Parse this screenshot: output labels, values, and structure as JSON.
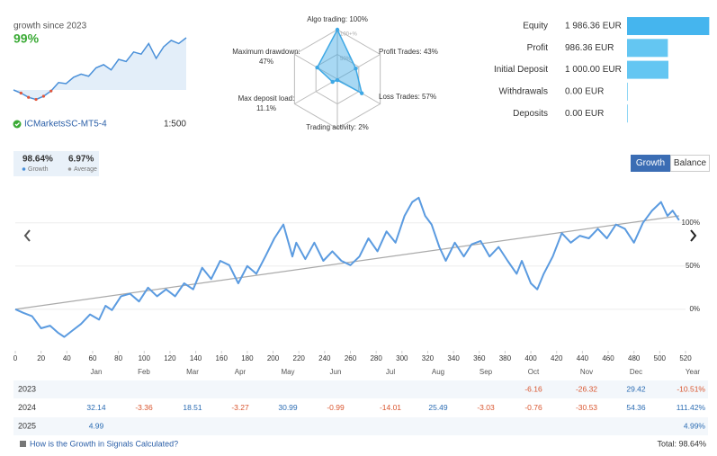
{
  "header": {
    "subtitle": "growth since 2023",
    "growth": "99%",
    "sparkline": [
      0,
      -6,
      -14,
      -18,
      -12,
      -2,
      14,
      12,
      24,
      30,
      26,
      42,
      48,
      38,
      58,
      54,
      72,
      68,
      88,
      60,
      82,
      94,
      88,
      99
    ],
    "account": "ICMarketsSC-MT5-4",
    "leverage": "1:500"
  },
  "radar": {
    "labels": [
      "Algo trading:",
      "Profit Trades:",
      "Loss Trades:",
      "Trading activity:",
      "Max deposit load:",
      "Maximum drawdown:"
    ],
    "values": [
      100,
      43,
      57,
      2,
      11.1,
      47
    ],
    "value_labels": [
      "100%",
      "43%",
      "57%",
      "2%",
      "11.1%",
      "47%"
    ],
    "ticks": [
      {
        "value": 50,
        "label": "50%"
      },
      {
        "value": 100,
        "label": "100+%"
      }
    ],
    "color": "#3ea8e5"
  },
  "balance": {
    "type": "bar",
    "categories": [
      "Equity",
      "Profit",
      "Initial Deposit",
      "Withdrawals",
      "Deposits"
    ],
    "values": [
      1986.36,
      986.36,
      1000,
      0,
      0
    ],
    "value_labels": [
      "1 986.36 EUR",
      "986.36 EUR",
      "1 000.00 EUR",
      "0.00 EUR",
      "0.00 EUR"
    ],
    "colors": [
      "#45b5ee",
      "#64c6f2",
      "#64c6f2",
      "#8fd6f5",
      "#8fd6f5"
    ],
    "xlim": [
      0,
      2000
    ]
  },
  "tabs": [
    {
      "value": "98.64%",
      "label": "Growth"
    },
    {
      "value": "6.97%",
      "label": "Average"
    }
  ],
  "buttons": [
    "Growth",
    "Balance"
  ],
  "chart_data": {
    "type": "line",
    "xlim": [
      0,
      520
    ],
    "ylim": [
      -48,
      134
    ],
    "xticks": [
      0,
      20,
      40,
      60,
      80,
      100,
      120,
      140,
      160,
      180,
      200,
      220,
      240,
      260,
      280,
      300,
      320,
      340,
      360,
      380,
      400,
      420,
      440,
      460,
      480,
      500,
      520
    ],
    "yticks": [
      {
        "value": 0,
        "label": "0%"
      },
      {
        "value": 50,
        "label": "50%"
      },
      {
        "value": 100,
        "label": "100%"
      }
    ],
    "grid": true,
    "series": [
      {
        "color": "#5b9be0",
        "x": [
          0,
          6,
          13,
          20,
          27,
          33,
          38,
          44,
          51,
          58,
          65,
          70,
          75,
          82,
          89,
          96,
          103,
          110,
          117,
          124,
          131,
          138,
          145,
          152,
          159,
          166,
          173,
          180,
          187,
          194,
          201,
          208,
          215,
          218,
          225,
          232,
          239,
          246,
          253,
          260,
          267,
          274,
          281,
          288,
          295,
          302,
          308,
          313,
          318,
          323,
          329,
          334,
          341,
          348,
          354,
          361,
          368,
          375,
          382,
          389,
          393,
          400,
          405,
          410,
          417,
          424,
          431,
          438,
          445,
          452,
          459,
          466,
          473,
          480,
          487,
          494,
          501,
          506,
          510,
          515
        ],
        "values": [
          0,
          -4,
          -8,
          -22,
          -19,
          -27,
          -32,
          -25,
          -17,
          -6,
          -12,
          4,
          -1,
          15,
          18,
          9,
          25,
          15,
          23,
          15,
          30,
          23,
          48,
          35,
          56,
          51,
          30,
          50,
          41,
          61,
          82,
          98,
          61,
          77,
          58,
          77,
          56,
          67,
          56,
          51,
          61,
          82,
          67,
          90,
          77,
          108,
          124,
          129,
          108,
          98,
          72,
          56,
          77,
          61,
          75,
          79,
          61,
          72,
          56,
          41,
          56,
          30,
          23,
          41,
          61,
          88,
          77,
          85,
          82,
          93,
          82,
          98,
          93,
          77,
          100,
          114,
          124,
          108,
          114,
          103
        ]
      },
      {
        "color": "#aaaaaa",
        "x": [
          0,
          515
        ],
        "values": [
          0,
          108
        ]
      }
    ]
  },
  "table": {
    "header": [
      "Jan",
      "Feb",
      "Mar",
      "Apr",
      "May",
      "Jun",
      "Jul",
      "Aug",
      "Sep",
      "Oct",
      "Nov",
      "Dec",
      "Year"
    ],
    "rows": [
      {
        "label": "2023",
        "cells": [
          null,
          null,
          null,
          null,
          null,
          null,
          null,
          null,
          null,
          "-6.16",
          "-26.32",
          "29.42",
          "-10.51%"
        ]
      },
      {
        "label": "2024",
        "cells": [
          "32.14",
          "-3.36",
          "18.51",
          "-3.27",
          "30.99",
          "-0.99",
          "-14.01",
          "25.49",
          "-3.03",
          "-0.76",
          "-30.53",
          "54.36",
          "111.42%"
        ]
      },
      {
        "label": "2025",
        "cells": [
          "4.99",
          null,
          null,
          null,
          null,
          null,
          null,
          null,
          null,
          null,
          null,
          null,
          "4.99%"
        ]
      }
    ]
  },
  "footer": {
    "link": "How is the Growth in Signals Calculated?",
    "total": "Total: 98.64%"
  }
}
